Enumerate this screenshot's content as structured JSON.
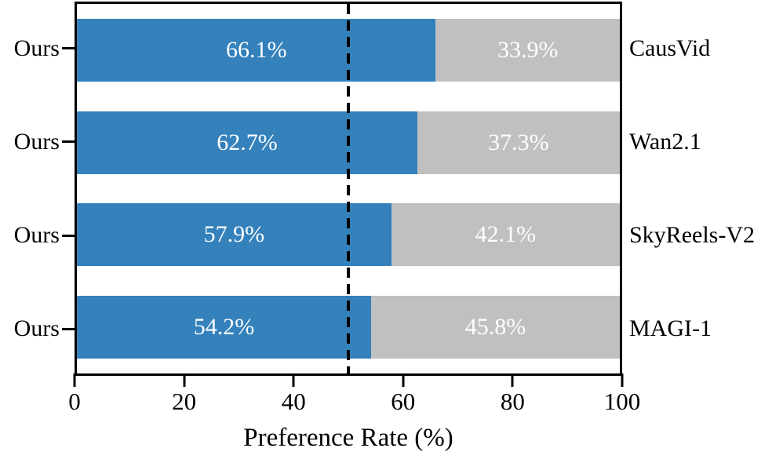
{
  "chart_data": {
    "type": "bar",
    "subtype": "horizontal-stacked-preference",
    "title": "",
    "xlabel": "Preference Rate (%)",
    "xlim": [
      0,
      100
    ],
    "x_ticks": [
      0,
      20,
      40,
      60,
      80,
      100
    ],
    "x_tick_labels": [
      "0",
      "20",
      "40",
      "60",
      "80",
      "100"
    ],
    "reference_line_x": 50,
    "grid": false,
    "legend": "none",
    "rows": [
      {
        "left_label": "Ours",
        "right_label": "CausVid",
        "ours_value": 66.1,
        "opponent_value": 33.9,
        "ours_text": "66.1%",
        "opponent_text": "33.9%"
      },
      {
        "left_label": "Ours",
        "right_label": "Wan2.1",
        "ours_value": 62.7,
        "opponent_value": 37.3,
        "ours_text": "62.7%",
        "opponent_text": "37.3%"
      },
      {
        "left_label": "Ours",
        "right_label": "SkyReels-V2",
        "ours_value": 57.9,
        "opponent_value": 42.1,
        "ours_text": "57.9%",
        "opponent_text": "42.1%"
      },
      {
        "left_label": "Ours",
        "right_label": "MAGI-1",
        "ours_value": 54.2,
        "opponent_value": 45.8,
        "ours_text": "54.2%",
        "opponent_text": "45.8%"
      }
    ],
    "colors": {
      "ours_bar": "#3481bb",
      "opponent_bar": "#c0c0c0",
      "bar_text": "#ffffff",
      "axis_text": "#000000",
      "reference_line": "#000000"
    }
  }
}
